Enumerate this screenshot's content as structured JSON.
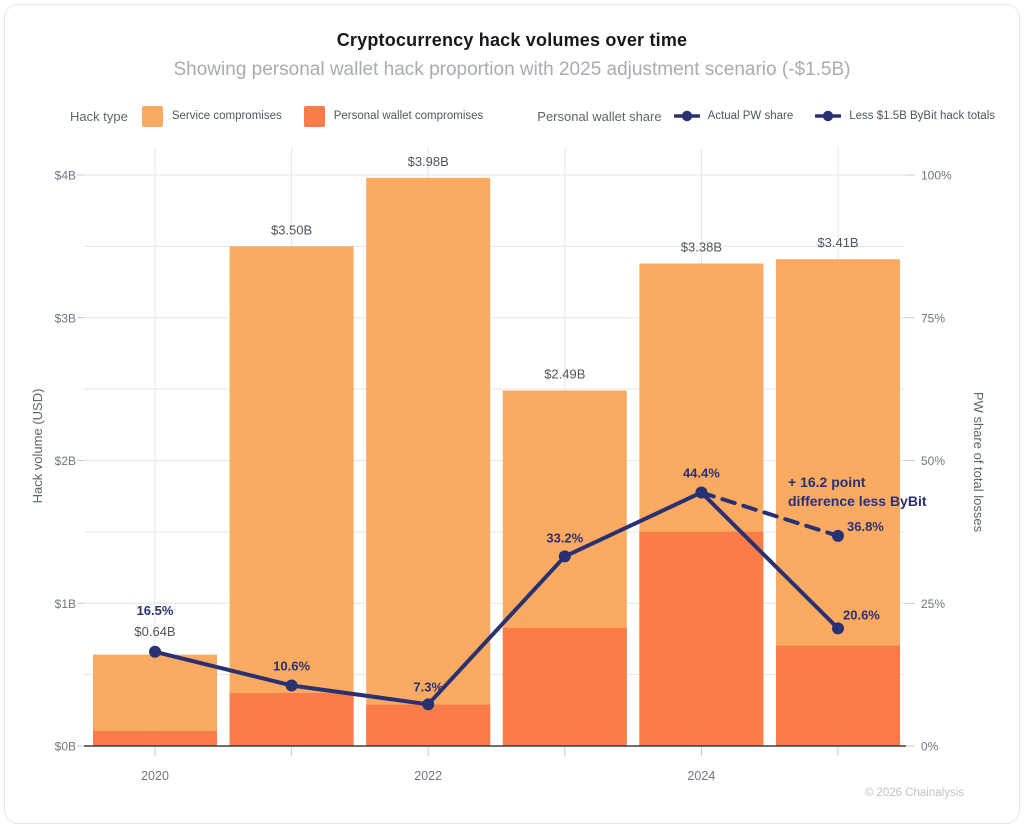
{
  "header": {
    "title": "Cryptocurrency hack volumes over time",
    "subtitle": "Showing personal wallet hack proportion with 2025 adjustment scenario (-$1.5B)"
  },
  "legend": {
    "hack_type_label": "Hack type",
    "items": [
      {
        "label": "Service compromises",
        "key": "service"
      },
      {
        "label": "Personal wallet compromises",
        "key": "personal"
      }
    ],
    "pw_share_label": "Personal wallet share",
    "line_items": [
      {
        "label": "Actual PW share"
      },
      {
        "label": "Less $1.5B ByBit hack totals"
      }
    ]
  },
  "footer": {
    "credit": "© 2026 Chainalysis"
  },
  "chart_data": {
    "type": "bar",
    "subtype": "stacked-bars-with-percent-line",
    "categories": [
      "2020",
      "2021",
      "2022",
      "2023",
      "2024",
      "2025"
    ],
    "series": [
      {
        "name": "Service compromises",
        "values": [
          0.534,
          3.129,
          3.69,
          1.663,
          1.879,
          2.707
        ]
      },
      {
        "name": "Personal wallet compromises",
        "values": [
          0.106,
          0.371,
          0.29,
          0.827,
          1.501,
          0.703
        ]
      }
    ],
    "totals": [
      0.64,
      3.5,
      3.98,
      2.49,
      3.38,
      3.41
    ],
    "total_labels": [
      "$0.64B",
      "$3.50B",
      "$3.98B",
      "$2.49B",
      "$3.38B",
      "$3.41B"
    ],
    "line": {
      "name": "Actual PW share",
      "values": [
        16.5,
        10.6,
        7.3,
        33.2,
        44.4,
        20.6
      ]
    },
    "adjusted": {
      "name": "Less $1.5B ByBit hack totals",
      "from_index": 4,
      "to_index": 5,
      "value": 36.8,
      "style": "dashed"
    },
    "annotation": {
      "lines": [
        "+ 16.2 point",
        "difference less ByBit"
      ]
    },
    "left_axis": {
      "title": "Hack volume (USD)",
      "ticks": [
        "$0B",
        "$1B",
        "$2B",
        "$3B",
        "$4B"
      ],
      "range": [
        0,
        4
      ],
      "minor_step": 0.5
    },
    "right_axis": {
      "title": "PW share of total losses",
      "ticks": [
        "0%",
        "25%",
        "50%",
        "75%",
        "100%"
      ],
      "range": [
        0,
        100
      ]
    },
    "x_label_every": 2,
    "grid": true,
    "legend_position": "top",
    "colors": {
      "service": "#FBAA61",
      "personal": "#F97C49",
      "line": "#293173",
      "grid": "#E4E5E8",
      "axis_text": "#6E7680",
      "value_label": "#4E555E",
      "baseline": "#3A3F45",
      "tick": "#C6C9CD"
    }
  }
}
